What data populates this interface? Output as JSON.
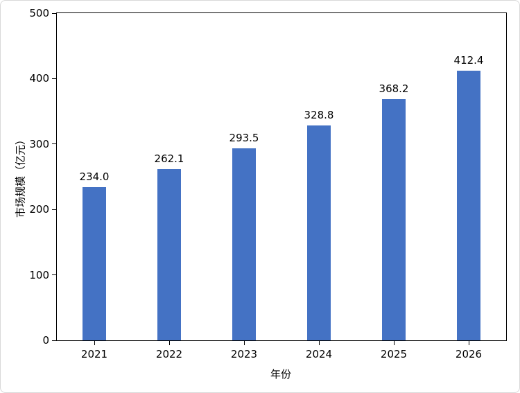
{
  "chart_data": {
    "type": "bar",
    "categories": [
      "2021",
      "2022",
      "2023",
      "2024",
      "2025",
      "2026"
    ],
    "values": [
      234.0,
      262.1,
      293.5,
      328.8,
      368.2,
      412.4
    ],
    "value_labels": [
      "234.0",
      "262.1",
      "293.5",
      "328.8",
      "368.2",
      "412.4"
    ],
    "title": "",
    "xlabel": "年份",
    "ylabel": "市场规模（亿元）",
    "ylim": [
      0,
      500
    ],
    "y_ticks": [
      0,
      100,
      200,
      300,
      400,
      500
    ],
    "bar_color": "#4472C4",
    "grid": false,
    "legend": "none",
    "background": "#ffffff"
  }
}
